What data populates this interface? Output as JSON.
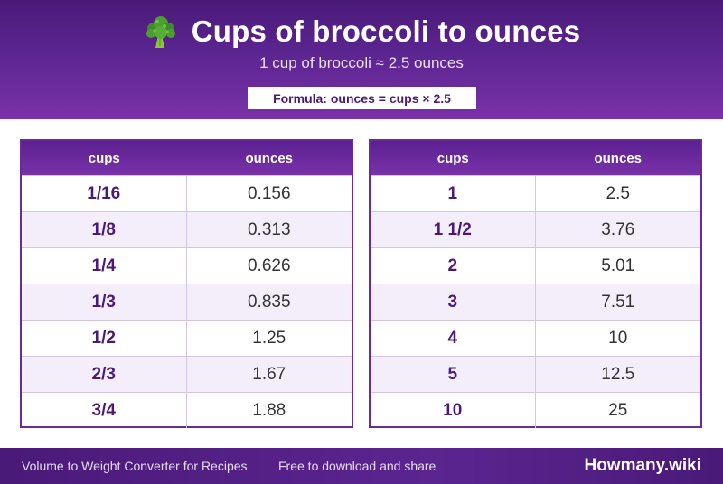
{
  "header": {
    "icon": "broccoli-icon",
    "title": "Cups of broccoli to ounces",
    "subtitle": "1 cup of broccoli ≈ 2.5 ounces",
    "formula": "Formula: ounces = cups × 2.5"
  },
  "tables": {
    "left": {
      "headers": {
        "cups": "cups",
        "ounces": "ounces"
      },
      "rows": [
        {
          "cups": "1/16",
          "ounces": "0.156"
        },
        {
          "cups": "1/8",
          "ounces": "0.313"
        },
        {
          "cups": "1/4",
          "ounces": "0.626"
        },
        {
          "cups": "1/3",
          "ounces": "0.835"
        },
        {
          "cups": "1/2",
          "ounces": "1.25"
        },
        {
          "cups": "2/3",
          "ounces": "1.67"
        },
        {
          "cups": "3/4",
          "ounces": "1.88"
        }
      ]
    },
    "right": {
      "headers": {
        "cups": "cups",
        "ounces": "ounces"
      },
      "rows": [
        {
          "cups": "1",
          "ounces": "2.5"
        },
        {
          "cups": "1 1/2",
          "ounces": "3.76"
        },
        {
          "cups": "2",
          "ounces": "5.01"
        },
        {
          "cups": "3",
          "ounces": "7.51"
        },
        {
          "cups": "4",
          "ounces": "10"
        },
        {
          "cups": "5",
          "ounces": "12.5"
        },
        {
          "cups": "10",
          "ounces": "25"
        }
      ]
    }
  },
  "footer": {
    "left_text": "Volume to Weight Converter for Recipes",
    "mid_text": "Free to download and share",
    "brand": "Howmany.wiki"
  },
  "colors": {
    "primary": "#5b2590",
    "accent": "#7a32a8",
    "row_alt": "#f3eefa"
  }
}
